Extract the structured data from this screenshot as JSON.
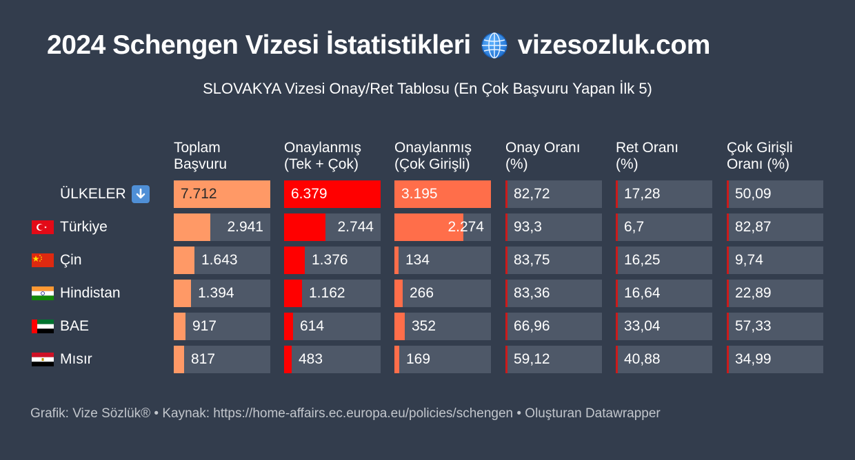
{
  "header": {
    "title_left": "2024 Schengen Vizesi İstatistikleri",
    "title_right": "vizesozluk.com",
    "globe_icon": "globe-icon",
    "subtitle": "SLOVAKYA Vizesi Onay/Ret Tablosu (En Çok Başvuru Yapan İlk 5)"
  },
  "footer": {
    "text": "Grafik: Vize Sözlük® • Kaynak: https://home-affairs.ec.europa.eu/policies/schengen • Oluşturan Datawrapper"
  },
  "colors": {
    "background": "#333d4d",
    "cell_bg": "#4e5868",
    "bar_total": "#ff9966",
    "bar_approved": "#ff0000",
    "bar_multi": "#ff6e4a",
    "rule": "#cc1a1a"
  },
  "chart_data": {
    "type": "table",
    "columns": [
      {
        "key": "toplam",
        "header": "Toplam\nBaşvuru",
        "display": "bar"
      },
      {
        "key": "onay",
        "header": "Onaylanmış\n(Tek + Çok)",
        "display": "bar"
      },
      {
        "key": "coklu",
        "header": "Onaylanmış\n(Çok Girişli)",
        "display": "bar"
      },
      {
        "key": "onay_orani",
        "header": "Onay Oranı\n(%)",
        "display": "text"
      },
      {
        "key": "ret_orani",
        "header": "Ret Oranı\n(%)",
        "display": "text"
      },
      {
        "key": "coklu_orani",
        "header": "Çok Girişli\nOranı (%)",
        "display": "text"
      }
    ],
    "rows": [
      {
        "label": "ÜLKELER",
        "flag": "down-arrow-icon",
        "values": {
          "toplam": 7712,
          "onay": 6379,
          "coklu": 3195
        },
        "display": {
          "toplam": "7.712",
          "onay": "6.379",
          "coklu": "3.195",
          "onay_orani": "82,72",
          "ret_orani": "17,28",
          "coklu_orani": "50,09"
        }
      },
      {
        "label": "Türkiye",
        "flag": "turkey-flag-icon",
        "values": {
          "toplam": 2941,
          "onay": 2744,
          "coklu": 2274
        },
        "display": {
          "toplam": "2.941",
          "onay": "2.744",
          "coklu": "2.274",
          "onay_orani": "93,3",
          "ret_orani": "6,7",
          "coklu_orani": "82,87"
        }
      },
      {
        "label": "Çin",
        "flag": "china-flag-icon",
        "values": {
          "toplam": 1643,
          "onay": 1376,
          "coklu": 134
        },
        "display": {
          "toplam": "1.643",
          "onay": "1.376",
          "coklu": "134",
          "onay_orani": "83,75",
          "ret_orani": "16,25",
          "coklu_orani": "9,74"
        }
      },
      {
        "label": "Hindistan",
        "flag": "india-flag-icon",
        "values": {
          "toplam": 1394,
          "onay": 1162,
          "coklu": 266
        },
        "display": {
          "toplam": "1.394",
          "onay": "1.162",
          "coklu": "266",
          "onay_orani": "83,36",
          "ret_orani": "16,64",
          "coklu_orani": "22,89"
        }
      },
      {
        "label": "BAE",
        "flag": "uae-flag-icon",
        "values": {
          "toplam": 917,
          "onay": 614,
          "coklu": 352
        },
        "display": {
          "toplam": "917",
          "onay": "614",
          "coklu": "352",
          "onay_orani": "66,96",
          "ret_orani": "33,04",
          "coklu_orani": "57,33"
        }
      },
      {
        "label": "Mısır",
        "flag": "egypt-flag-icon",
        "values": {
          "toplam": 817,
          "onay": 483,
          "coklu": 169
        },
        "display": {
          "toplam": "817",
          "onay": "483",
          "coklu": "169",
          "onay_orani": "59,12",
          "ret_orani": "40,88",
          "coklu_orani": "34,99"
        }
      }
    ]
  }
}
